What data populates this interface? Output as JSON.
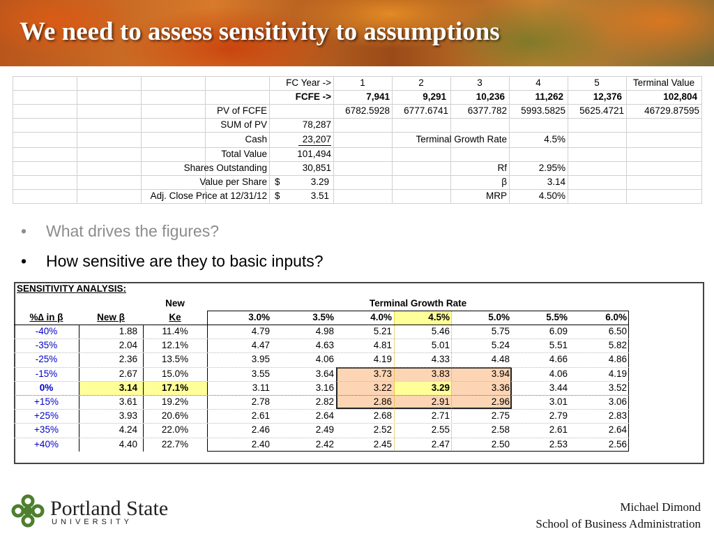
{
  "title": "We need to assess sensitivity to assumptions",
  "valuation_table": {
    "rows": [
      {
        "cells": [
          null,
          "FC Year ->",
          "1",
          "2",
          "3",
          "4",
          "5",
          "Terminal Value"
        ]
      },
      {
        "bold": true,
        "cells": [
          null,
          "FCFE ->",
          "7,941",
          "9,291",
          "10,236",
          "11,262",
          "12,376",
          "102,804"
        ]
      },
      {
        "cells": [
          "PV of FCFE",
          null,
          "6782.5928",
          "6777.6741",
          "6377.782",
          "5993.5825",
          "5625.4721",
          "46729.87595"
        ]
      },
      {
        "cells": [
          "SUM of PV",
          "78,287",
          null,
          null,
          null,
          null,
          null,
          null
        ]
      },
      {
        "cells": [
          "Cash",
          "23,207",
          null,
          null,
          "Terminal Growth Rate",
          "4.5%",
          null,
          null
        ]
      },
      {
        "cells": [
          "Total Value",
          "101,494",
          null,
          null,
          null,
          null,
          null,
          null
        ]
      },
      {
        "cells": [
          "Shares Outstanding",
          "30,851",
          null,
          null,
          "Rf",
          "2.95%",
          null,
          null
        ]
      },
      {
        "cells": [
          "Value per Share",
          {
            "currency": "$",
            "amount": "3.29"
          },
          null,
          null,
          "β",
          "3.14",
          null,
          null
        ]
      },
      {
        "cells": [
          "Adj. Close Price at 12/31/12",
          {
            "currency": "$",
            "amount": "3.51"
          },
          null,
          null,
          "MRP",
          "4.50%",
          null,
          null
        ]
      }
    ]
  },
  "bullets": [
    "What drives the figures?",
    "How sensitive are they to basic inputs?"
  ],
  "sensitivity": {
    "heading": "SENSITIVITY ANALYSIS:",
    "ke_header_top": "New",
    "growth_header": "Terminal Growth Rate",
    "col_headers": [
      "%∆ in β",
      "New β",
      "Ke"
    ],
    "growth_rates": [
      "3.0%",
      "3.5%",
      "4.0%",
      "4.5%",
      "5.0%",
      "5.5%",
      "6.0%"
    ],
    "beta_changes": [
      "-40%",
      "-35%",
      "-25%",
      "-15%",
      "0%",
      "+15%",
      "+25%",
      "+35%",
      "+40%"
    ],
    "new_beta": [
      "1.88",
      "2.04",
      "2.36",
      "2.67",
      "3.14",
      "3.61",
      "3.93",
      "4.24",
      "4.40"
    ],
    "new_ke": [
      "11.4%",
      "12.1%",
      "13.5%",
      "15.0%",
      "17.1%",
      "19.2%",
      "20.6%",
      "22.0%",
      "22.7%"
    ],
    "values": [
      [
        "4.79",
        "4.98",
        "5.21",
        "5.46",
        "5.75",
        "6.09",
        "6.50"
      ],
      [
        "4.47",
        "4.63",
        "4.81",
        "5.01",
        "5.24",
        "5.51",
        "5.82"
      ],
      [
        "3.95",
        "4.06",
        "4.19",
        "4.33",
        "4.48",
        "4.66",
        "4.86"
      ],
      [
        "3.55",
        "3.64",
        "3.73",
        "3.83",
        "3.94",
        "4.06",
        "4.19"
      ],
      [
        "3.11",
        "3.16",
        "3.22",
        "3.29",
        "3.36",
        "3.44",
        "3.52"
      ],
      [
        "2.78",
        "2.82",
        "2.86",
        "2.91",
        "2.96",
        "3.01",
        "3.06"
      ],
      [
        "2.61",
        "2.64",
        "2.68",
        "2.71",
        "2.75",
        "2.79",
        "2.83"
      ],
      [
        "2.46",
        "2.49",
        "2.52",
        "2.55",
        "2.58",
        "2.61",
        "2.64"
      ],
      [
        "2.40",
        "2.42",
        "2.45",
        "2.47",
        "2.50",
        "2.53",
        "2.56"
      ]
    ]
  },
  "footer": {
    "logo_name": "Portland State",
    "logo_sub": "UNIVERSITY",
    "author": "Michael Dimond",
    "school": "School of Business Administration"
  }
}
